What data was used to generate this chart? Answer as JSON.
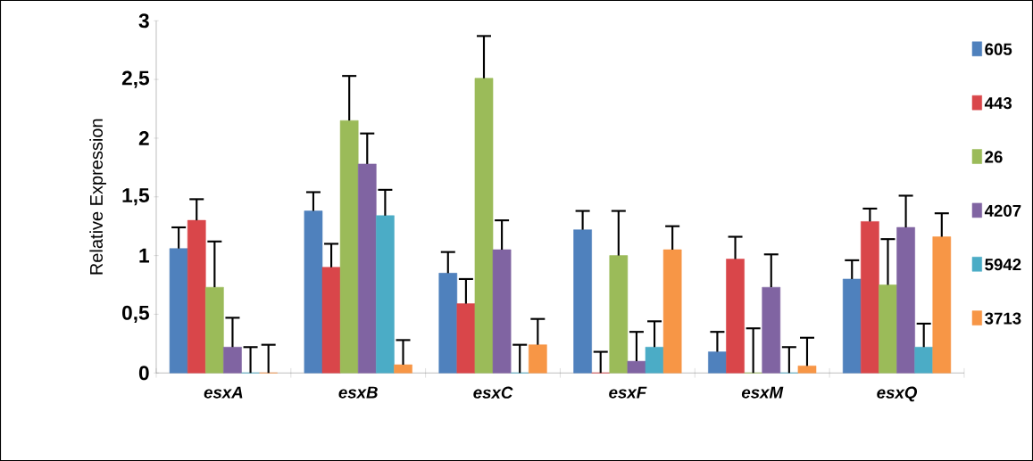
{
  "chart_data": {
    "type": "bar",
    "ylabel": "Relative Expression",
    "categories": [
      "esxA",
      "esxB",
      "esxC",
      "esxF",
      "esxM",
      "esxQ"
    ],
    "ylim": [
      0,
      3
    ],
    "yticks": [
      0,
      {
        "value": 0.5,
        "label": "0,5"
      },
      1,
      {
        "value": 1.5,
        "label": "1,5"
      },
      2,
      {
        "value": 2.5,
        "label": "2,5"
      },
      3
    ],
    "legend": "right",
    "grid": false,
    "series": [
      {
        "name": "605",
        "color": "#4f81bd",
        "values": [
          1.06,
          1.38,
          0.85,
          1.22,
          0.18,
          0.8
        ],
        "errors": [
          0.18,
          0.16,
          0.18,
          0.16,
          0.17,
          0.16
        ]
      },
      {
        "name": "443",
        "color": "#d9464a",
        "values": [
          1.3,
          0.9,
          0.59,
          0,
          0.97,
          1.29
        ],
        "errors": [
          0.18,
          0.2,
          0.21,
          0.18,
          0.19,
          0.11
        ]
      },
      {
        "name": "26",
        "color": "#9bbb59",
        "values": [
          0.73,
          2.15,
          2.51,
          1.0,
          0,
          0.75
        ],
        "errors": [
          0.39,
          0.38,
          0.36,
          0.38,
          0.38,
          0.39
        ]
      },
      {
        "name": "4207",
        "color": "#8064a2",
        "values": [
          0.22,
          1.78,
          1.05,
          0.1,
          0.73,
          1.24
        ],
        "errors": [
          0.25,
          0.26,
          0.25,
          0.25,
          0.28,
          0.27
        ]
      },
      {
        "name": "5942",
        "color": "#4bacc6",
        "values": [
          0,
          1.34,
          0,
          0.22,
          0,
          0.22
        ],
        "errors": [
          0.22,
          0.22,
          0.24,
          0.22,
          0.22,
          0.2
        ]
      },
      {
        "name": "3713",
        "color": "#f79646",
        "values": [
          0,
          0.07,
          0.24,
          1.05,
          0.06,
          1.16
        ],
        "errors": [
          0.24,
          0.21,
          0.22,
          0.2,
          0.24,
          0.2
        ]
      }
    ]
  }
}
